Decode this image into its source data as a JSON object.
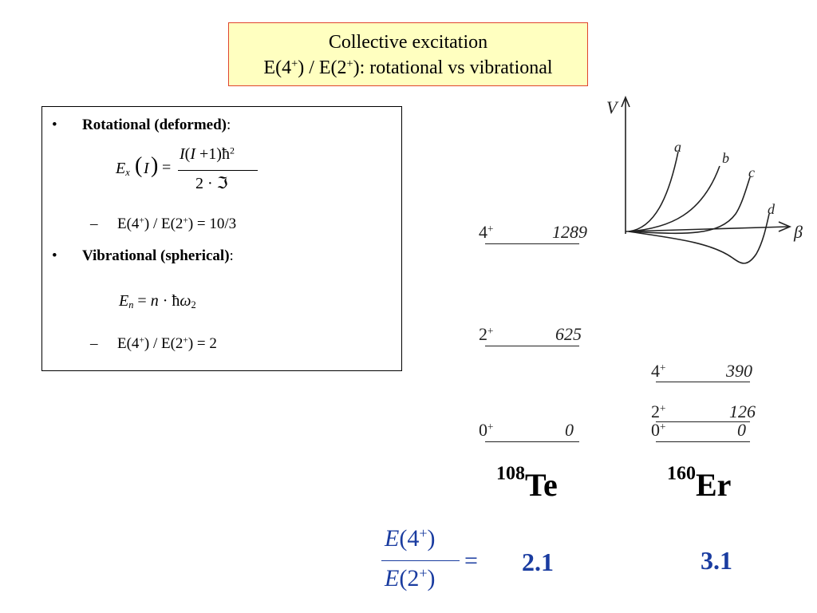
{
  "title": {
    "line1": "Collective excitation",
    "line2": "E(4+) / E(2+): rotational vs vibrational"
  },
  "bullets": [
    {
      "label": "Rotational (deformed)",
      "formula": "E_x(I) = I(I+1)ħ² / 2·ℑ",
      "sub": "E(4+) / E(2+) = 10/3"
    },
    {
      "label": "Vibrational (spherical)",
      "formula": "E_n = n·ħω_2",
      "sub": "E(4+) / E(2+) = 2"
    }
  ],
  "potential_plot": {
    "y_axis_label": "V",
    "x_axis_label": "β",
    "curve_labels": [
      "a",
      "b",
      "c",
      "d"
    ]
  },
  "te108": {
    "nucleus_mass": "108",
    "nucleus_symbol": "Te",
    "levels": [
      {
        "spin": "4+",
        "energy": "1289"
      },
      {
        "spin": "2+",
        "energy": "625"
      },
      {
        "spin": "0+",
        "energy": "0"
      }
    ],
    "ratio": "2.1"
  },
  "er160": {
    "nucleus_mass": "160",
    "nucleus_symbol": "Er",
    "levels": [
      {
        "spin": "4+",
        "energy": "390"
      },
      {
        "spin": "2+",
        "energy": "126"
      },
      {
        "spin": "0+",
        "energy": "0"
      }
    ],
    "ratio": "3.1"
  },
  "ratio_formula": "E(4+)/E(2+) =",
  "colors": {
    "title_bg": "#ffffc0",
    "title_border": "#e0442c",
    "ratio_blue": "#1a3ca0"
  }
}
